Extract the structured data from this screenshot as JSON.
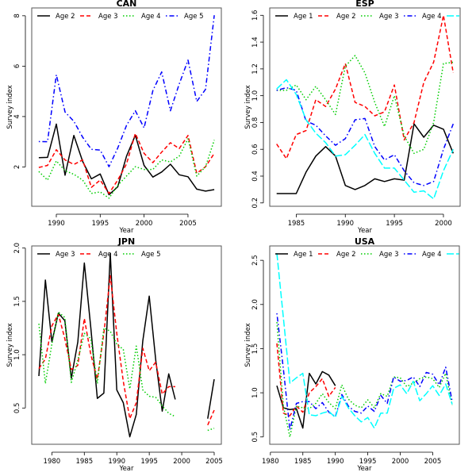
{
  "chart_data": [
    {
      "type": "line",
      "title": "CAN",
      "xlabel": "Year",
      "ylabel": "Survey index",
      "xlim": [
        1987.2,
        2008.8
      ],
      "ylim": [
        0.44,
        8.31
      ],
      "xticks": [
        1990,
        1995,
        2000,
        2005
      ],
      "yticks": [
        2,
        4,
        6,
        8
      ],
      "grid": false,
      "legend": "top",
      "x": [
        1988,
        1989,
        1990,
        1991,
        1992,
        1993,
        1994,
        1995,
        1996,
        1997,
        1998,
        1999,
        2000,
        2001,
        2002,
        2003,
        2004,
        2005,
        2006,
        2007,
        2008
      ],
      "series": [
        {
          "name": "Age 2",
          "color": "#000000",
          "style": "solid",
          "values": [
            2.37,
            2.38,
            3.7,
            1.67,
            3.25,
            2.22,
            1.53,
            1.72,
            0.9,
            1.21,
            2.43,
            3.26,
            2.06,
            1.6,
            1.8,
            2.11,
            1.69,
            1.61,
            1.12,
            1.04,
            1.1
          ]
        },
        {
          "name": "Age 3",
          "color": "#ff0000",
          "style": "dashed",
          "values": [
            1.98,
            2.06,
            2.68,
            2.28,
            2.1,
            2.28,
            1.19,
            1.48,
            0.95,
            1.48,
            2.12,
            3.33,
            2.54,
            2.17,
            2.59,
            2.96,
            2.73,
            3.25,
            1.75,
            2.01,
            2.54
          ]
        },
        {
          "name": "Age 4",
          "color": "#00cd00",
          "style": "dotted",
          "values": [
            1.82,
            1.48,
            2.24,
            1.85,
            1.71,
            1.48,
            0.95,
            1.01,
            0.76,
            1.27,
            1.64,
            2.01,
            1.9,
            1.9,
            2.28,
            2.2,
            2.43,
            3.12,
            1.64,
            2.01,
            3.07
          ]
        },
        {
          "name": "Age 5",
          "color": "#0000ff",
          "style": "dotdash",
          "values": [
            3.01,
            3.0,
            5.66,
            4.18,
            3.81,
            3.18,
            2.7,
            2.67,
            2.01,
            2.75,
            3.65,
            4.23,
            3.55,
            5.03,
            5.77,
            4.23,
            5.29,
            6.24,
            4.6,
            5.08,
            8.02
          ]
        }
      ]
    },
    {
      "type": "line",
      "title": "ESP",
      "xlabel": "Year",
      "ylabel": "Survey index",
      "xlim": [
        1982.3,
        2001.7
      ],
      "ylim": [
        0.175,
        1.655
      ],
      "xticks": [
        1985,
        1990,
        1995,
        2000
      ],
      "yticks": [
        0.2,
        0.4,
        0.6,
        0.8,
        1.0,
        1.2,
        1.4,
        1.6
      ],
      "ytick_labels": [
        "0.2",
        "0.4",
        "0.6",
        "0.8",
        "1.0",
        "1.2",
        "1.4",
        "1.6"
      ],
      "grid": false,
      "legend": "top",
      "x": [
        1983,
        1984,
        1985,
        1986,
        1987,
        1988,
        1989,
        1990,
        1991,
        1992,
        1993,
        1994,
        1995,
        1996,
        1997,
        1998,
        1999,
        2000,
        2001
      ],
      "series": [
        {
          "name": "Age 1",
          "color": "#000000",
          "style": "solid",
          "values": [
            0.27,
            0.27,
            0.27,
            0.43,
            0.55,
            0.62,
            0.55,
            0.33,
            0.3,
            0.33,
            0.38,
            0.36,
            0.38,
            0.37,
            0.79,
            0.69,
            0.78,
            0.75,
            0.57
          ]
        },
        {
          "name": "Age 2",
          "color": "#ff0000",
          "style": "dashed",
          "values": [
            0.64,
            0.53,
            0.71,
            0.74,
            0.97,
            0.92,
            1.05,
            1.24,
            0.95,
            0.92,
            0.85,
            0.88,
            1.08,
            0.67,
            0.8,
            1.1,
            1.25,
            1.6,
            1.17
          ]
        },
        {
          "name": "Age 3",
          "color": "#00cd00",
          "style": "dotted",
          "values": [
            1.04,
            1.04,
            1.08,
            0.97,
            1.07,
            0.97,
            0.86,
            1.22,
            1.3,
            1.17,
            0.95,
            0.77,
            1.0,
            0.7,
            0.57,
            0.6,
            0.8,
            1.24,
            1.25
          ]
        },
        {
          "name": "Age 4",
          "color": "#0000ff",
          "style": "dotdash",
          "values": [
            1.04,
            1.06,
            1.04,
            0.81,
            0.78,
            0.7,
            0.63,
            0.68,
            0.82,
            0.83,
            0.62,
            0.52,
            0.56,
            0.44,
            0.35,
            0.33,
            0.36,
            0.6,
            0.79
          ]
        },
        {
          "color": "#00ffff",
          "style": "longdash",
          "values": [
            1.05,
            1.12,
            1.01,
            0.82,
            0.72,
            0.65,
            0.55,
            0.56,
            0.63,
            0.71,
            0.57,
            0.46,
            0.46,
            0.37,
            0.28,
            0.29,
            0.23,
            0.44,
            0.6
          ]
        }
      ]
    },
    {
      "type": "line",
      "title": "JPN",
      "xlabel": "Year",
      "ylabel": "Survey index",
      "xlim": [
        1976.9,
        2006.1
      ],
      "ylim": [
        0.16,
        2.02
      ],
      "xticks": [
        1980,
        1985,
        1990,
        1995,
        2000,
        2005
      ],
      "yticks": [
        0.5,
        1.0,
        1.5,
        2.0
      ],
      "ytick_labels": [
        "0.5",
        "1.0",
        "1.5",
        "2.0"
      ],
      "grid": false,
      "legend": "top",
      "x": [
        1978,
        1979,
        1980,
        1981,
        1982,
        1983,
        1984,
        1985,
        1986,
        1987,
        1988,
        1989,
        1990,
        1991,
        1992,
        1993,
        1994,
        1995,
        1996,
        1997,
        1998,
        1999,
        2000,
        2001,
        2002,
        2003,
        2004,
        2005
      ],
      "series": [
        {
          "name": "Age 3",
          "color": "#000000",
          "style": "solid",
          "values": [
            0.8,
            1.7,
            1.12,
            1.39,
            1.32,
            0.78,
            1.12,
            1.86,
            1.25,
            0.59,
            0.64,
            1.95,
            0.67,
            0.55,
            0.23,
            0.44,
            1.13,
            1.55,
            0.95,
            0.47,
            0.82,
            0.58,
            null,
            null,
            null,
            null,
            0.4,
            0.77
          ]
        },
        {
          "name": "Age 4",
          "color": "#ff0000",
          "style": "dashed",
          "values": [
            0.87,
            0.96,
            1.27,
            1.38,
            1.15,
            0.86,
            0.9,
            1.34,
            1.0,
            0.77,
            1.2,
            1.74,
            1.2,
            0.75,
            0.4,
            0.55,
            1.06,
            0.85,
            0.93,
            0.63,
            0.7,
            0.7,
            null,
            null,
            null,
            null,
            0.34,
            0.48
          ]
        },
        {
          "name": "Age 5",
          "color": "#00cd00",
          "style": "dotted",
          "values": [
            1.29,
            0.73,
            1.1,
            1.4,
            1.35,
            0.74,
            0.95,
            1.2,
            1.15,
            0.73,
            1.25,
            1.22,
            1.1,
            1.05,
            0.68,
            1.08,
            0.67,
            0.61,
            0.6,
            0.52,
            0.45,
            0.42,
            null,
            null,
            null,
            null,
            0.29,
            0.31
          ]
        }
      ]
    },
    {
      "type": "line",
      "title": "USA",
      "xlabel": "Year",
      "ylabel": "Survey index",
      "xlim": [
        1979.9,
        2009.1
      ],
      "ylim": [
        0.417,
        2.663
      ],
      "xticks": [
        1980,
        1985,
        1990,
        1995,
        2000,
        2005
      ],
      "yticks": [
        0.5,
        1.0,
        1.5,
        2.0,
        2.5
      ],
      "ytick_labels": [
        "0.5",
        "1.0",
        "1.5",
        "2.0",
        "2.5"
      ],
      "grid": false,
      "legend": "top",
      "x": [
        1981,
        1982,
        1983,
        1984,
        1985,
        1986,
        1987,
        1988,
        1989,
        1990,
        1991,
        1992,
        1993,
        1994,
        1995,
        1996,
        1997,
        1998,
        1999,
        2000,
        2001,
        2002,
        2003,
        2004,
        2005,
        2006,
        2007,
        2008
      ],
      "series": [
        {
          "name": "Age 1",
          "color": "#000000",
          "style": "solid",
          "values": [
            1.08,
            0.83,
            0.81,
            0.82,
            0.6,
            1.22,
            1.1,
            1.24,
            1.2,
            1.08,
            null,
            null,
            null,
            null,
            null,
            null,
            null,
            null,
            null,
            null,
            null,
            null,
            null,
            null,
            null,
            null,
            null,
            null
          ]
        },
        {
          "name": "Age 2",
          "color": "#ff0000",
          "style": "dashed",
          "values": [
            1.56,
            0.77,
            0.74,
            0.85,
            0.78,
            1.0,
            1.07,
            1.16,
            0.96,
            1.06,
            null,
            null,
            null,
            null,
            null,
            null,
            null,
            null,
            null,
            null,
            null,
            null,
            null,
            null,
            null,
            null,
            null,
            null
          ]
        },
        {
          "name": "Age 3",
          "color": "#00cd00",
          "style": "dotted",
          "values": [
            1.8,
            0.85,
            0.5,
            0.85,
            0.83,
            0.82,
            0.88,
            0.99,
            0.89,
            0.82,
            1.09,
            0.93,
            0.86,
            0.83,
            0.92,
            0.83,
            0.99,
            0.96,
            1.18,
            1.17,
            1.07,
            1.11,
            1.16,
            1.18,
            1.16,
            1.06,
            1.22,
            0.86
          ]
        },
        {
          "name": "Age 4",
          "color": "#0000ff",
          "style": "dotdash",
          "values": [
            1.9,
            1.27,
            0.58,
            0.88,
            0.9,
            0.9,
            0.82,
            0.89,
            0.78,
            0.73,
            0.98,
            0.85,
            0.79,
            0.77,
            0.85,
            0.79,
            0.97,
            0.88,
            1.18,
            1.13,
            1.14,
            1.18,
            1.07,
            1.23,
            1.21,
            1.09,
            1.29,
            0.9
          ]
        },
        {
          "color": "#00ffff",
          "style": "longdash",
          "values": [
            2.58,
            1.85,
            1.11,
            1.17,
            1.22,
            0.75,
            0.74,
            0.77,
            0.79,
            0.72,
            0.96,
            0.83,
            0.74,
            0.67,
            0.72,
            0.6,
            0.77,
            0.77,
            1.05,
            1.09,
            0.99,
            1.13,
            0.91,
            0.99,
            1.08,
            0.97,
            1.1,
            0.87
          ]
        }
      ]
    }
  ]
}
